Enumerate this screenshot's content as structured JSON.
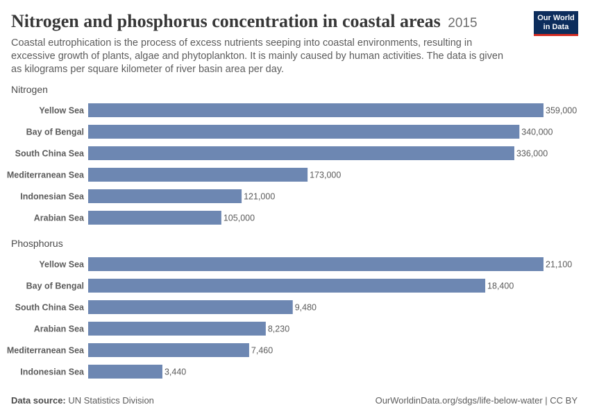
{
  "header": {
    "title": "Nitrogen and phosphorus concentration in coastal areas",
    "year": "2015",
    "subtitle": "Coastal eutrophication is the process of excess nutrients seeping into coastal environments, resulting in excessive growth of plants, algae and phytoplankton. It is mainly caused by human activities. The data is given as kilograms per square kilometer of river basin area per day."
  },
  "logo": {
    "line1": "Our World",
    "line2": "in Data"
  },
  "footer": {
    "source_label": "Data source:",
    "source_value": "UN Statistics Division",
    "url": "OurWorldinData.org/sdgs/life-below-water | CC BY"
  },
  "colors": {
    "bar": "#6d87b2"
  },
  "chart_data": [
    {
      "type": "bar",
      "orientation": "horizontal",
      "title": "Nitrogen",
      "categories": [
        "Yellow Sea",
        "Bay of Bengal",
        "South China Sea",
        "Mediterranean Sea",
        "Indonesian Sea",
        "Arabian Sea"
      ],
      "values": [
        359000,
        340000,
        336000,
        173000,
        121000,
        105000
      ],
      "labels": [
        "359,000",
        "340,000",
        "336,000",
        "173,000",
        "121,000",
        "105,000"
      ]
    },
    {
      "type": "bar",
      "orientation": "horizontal",
      "title": "Phosphorus",
      "categories": [
        "Yellow Sea",
        "Bay of Bengal",
        "South China Sea",
        "Arabian Sea",
        "Mediterranean Sea",
        "Indonesian Sea"
      ],
      "values": [
        21100,
        18400,
        9480,
        8230,
        7460,
        3440
      ],
      "labels": [
        "21,100",
        "18,400",
        "9,480",
        "8,230",
        "7,460",
        "3,440"
      ]
    }
  ]
}
